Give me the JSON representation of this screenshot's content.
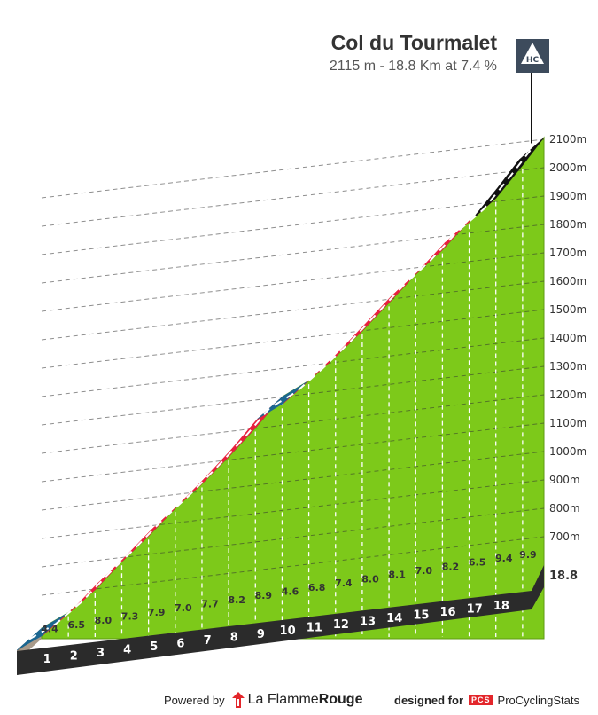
{
  "header": {
    "title": "Col du Tourmalet",
    "subtitle": "2115 m - 18.8 Km at 7.4 %",
    "category_badge": "HC"
  },
  "footer": {
    "powered_by": "Powered by",
    "brand_part1": "La Flamme",
    "brand_part2": "Rouge",
    "designed_for": "designed for",
    "pcs_logo": "PCS",
    "pcs_name": "ProCyclingStats"
  },
  "chart_data": {
    "type": "area",
    "title": "Col du Tourmalet",
    "subtitle": "2115 m - 18.8 Km at 7.4 %",
    "ylim": [
      600,
      2100
    ],
    "ytick_labels": [
      "700m",
      "800m",
      "900m",
      "1000m",
      "1100m",
      "1200m",
      "1300m",
      "1400m",
      "1500m",
      "1600m",
      "1700m",
      "1800m",
      "1900m",
      "2000m",
      "2100m"
    ],
    "km_labels": [
      "1",
      "2",
      "3",
      "4",
      "5",
      "6",
      "7",
      "8",
      "9",
      "10",
      "11",
      "12",
      "13",
      "14",
      "15",
      "16",
      "17",
      "18"
    ],
    "final_distance_label": "18.8",
    "gradients": [
      "4.4",
      "6.5",
      "8.0",
      "7.3",
      "7.9",
      "7.0",
      "7.7",
      "8.2",
      "8.9",
      "4.6",
      "6.8",
      "7.4",
      "8.0",
      "8.1",
      "7.0",
      "8.2",
      "6.5",
      "9.4",
      "9.9"
    ],
    "gradient_colors": {
      "0-5": "#1b6690",
      "5-8": "#e81f3d",
      "8-10": "#e81f3d",
      "hc_summit": "#111111"
    },
    "segment_colors": [
      "#1b6690",
      "#e81f3d",
      "#e81f3d",
      "#e81f3d",
      "#e81f3d",
      "#e81f3d",
      "#e81f3d",
      "#e81f3d",
      "#e81f3d",
      "#1b6690",
      "#e81f3d",
      "#e81f3d",
      "#e81f3d",
      "#e81f3d",
      "#e81f3d",
      "#e81f3d",
      "#e81f3d",
      "#111111",
      "#111111"
    ],
    "fill_color": "#7dc91a",
    "summit_altitude": 2115,
    "grid": true
  }
}
